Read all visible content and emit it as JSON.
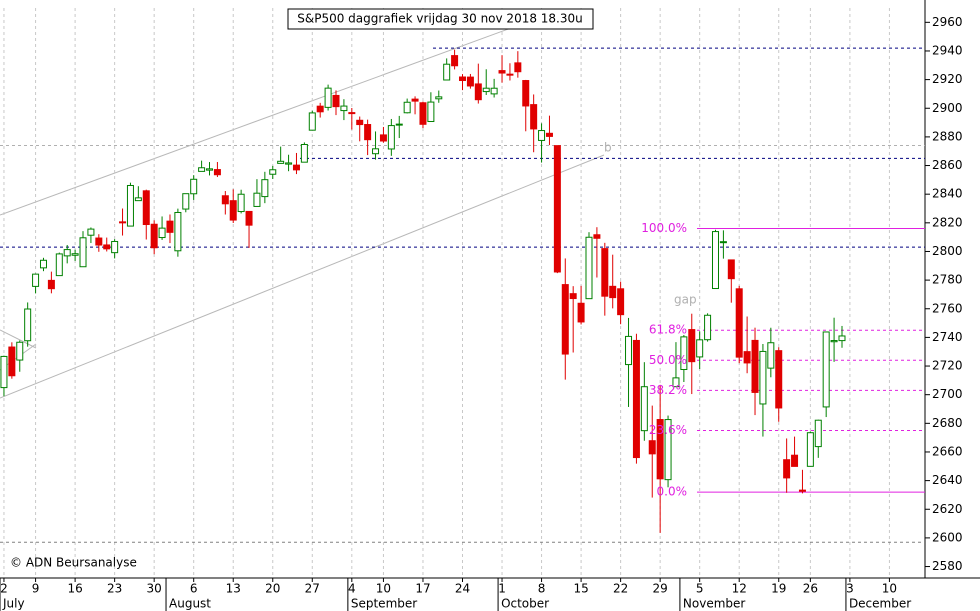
{
  "chart_data": {
    "type": "candlestick",
    "title": "S&P500 daggrafiek vrijdag 30 nov 2018 18.30u",
    "copyright": "© ADN Beursanalyse",
    "annotations": [
      "b",
      "gap"
    ],
    "categories": [
      "2",
      null,
      null,
      null,
      "9",
      null,
      null,
      null,
      null,
      "16",
      null,
      null,
      null,
      null,
      "23",
      null,
      null,
      null,
      null,
      "30",
      null,
      null,
      null,
      null,
      "6",
      null,
      null,
      null,
      null,
      "13",
      null,
      null,
      null,
      null,
      "20",
      null,
      null,
      null,
      null,
      "27",
      null,
      null,
      null,
      null,
      "4",
      null,
      null,
      null,
      "10",
      null,
      null,
      null,
      null,
      "17",
      null,
      null,
      null,
      null,
      "24",
      null,
      null,
      null,
      null,
      "1",
      null,
      null,
      null,
      null,
      "8",
      null,
      null,
      null,
      null,
      "15",
      null,
      null,
      null,
      null,
      "22",
      null,
      null,
      null,
      null,
      "29",
      null,
      null,
      null,
      null,
      "5",
      null,
      null,
      null,
      null,
      "12",
      null,
      null,
      null,
      null,
      "19",
      null,
      null,
      null,
      "26",
      null,
      null,
      null,
      null,
      "3",
      null,
      null,
      null,
      null,
      "10",
      null,
      null,
      null,
      null
    ],
    "months": [
      "July",
      null,
      null,
      null,
      null,
      null,
      null,
      null,
      null,
      null,
      null,
      null,
      null,
      null,
      null,
      null,
      null,
      null,
      null,
      null,
      null,
      "August",
      null,
      null,
      null,
      null,
      null,
      null,
      null,
      null,
      null,
      null,
      null,
      null,
      null,
      null,
      null,
      null,
      null,
      null,
      null,
      null,
      null,
      null,
      "September",
      null,
      null,
      null,
      null,
      null,
      null,
      null,
      null,
      null,
      null,
      null,
      null,
      null,
      null,
      null,
      null,
      null,
      null,
      "October",
      null,
      null,
      null,
      null,
      null,
      null,
      null,
      null,
      null,
      null,
      null,
      null,
      null,
      null,
      null,
      null,
      null,
      null,
      null,
      null,
      null,
      null,
      "November",
      null,
      null,
      null,
      null,
      null,
      null,
      null,
      null,
      null,
      null,
      null,
      null,
      null,
      null,
      null,
      null,
      null,
      null,
      null,
      null,
      "December",
      null,
      null,
      null,
      null,
      null,
      null,
      null,
      null,
      null
    ],
    "open": [
      2704.95,
      2733.27,
      2724.19,
      2737.68,
      2775.62,
      2788.56,
      2779.82,
      2783.14,
      2796.93,
      2797.36,
      2789.34,
      2811.35,
      2809.37,
      2804.55,
      2799.17,
      2820.68,
      2817.73,
      2835.49,
      2842.35,
      2819.0,
      2809.73,
      2821.17,
      2800.48,
      2829.62,
      2840.29,
      2855.92,
      2856.79,
      2857.19,
      2838.9,
      2835.46,
      2827.88,
      2827.95,
      2831.44,
      2838.32,
      2853.93,
      2861.51,
      2860.99,
      2860.29,
      2862.35,
      2884.69,
      2901.45,
      2900.62,
      2908.94,
      2898.37,
      2896.96,
      2891.59,
      2888.64,
      2868.26,
      2881.39,
      2871.57,
      2888.29,
      2896.85,
      2906.38,
      2903.83,
      2890.74,
      2906.6,
      2919.73,
      2936.76,
      2921.83,
      2921.75,
      2916.98,
      2911.65,
      2910.03,
      2926.29,
      2923.8,
      2931.69,
      2919.35,
      2902.54,
      2877.53,
      2882.51,
      2873.9,
      2776.87,
      2770.54,
      2763.83,
      2767.05,
      2811.67,
      2802.0,
      2775.66,
      2773.94,
      2721.03,
      2737.87,
      2674.88,
      2667.86,
      2682.65,
      2640.68,
      2705.6,
      2717.58,
      2745.45,
      2726.37,
      2738.4,
      2774.13,
      2806.83,
      2794.1,
      2773.93,
      2730.05,
      2737.9,
      2693.52,
      2718.54,
      2730.74,
      2654.6,
      2657.74,
      2633.36,
      2649.97,
      2663.75,
      2691.45,
      2736.97,
      2737.76,
      null,
      null,
      null,
      null,
      null,
      null,
      null,
      null,
      null,
      null
    ],
    "high": [
      2727.26,
      2736.58,
      2737.83,
      2764.41,
      2784.65,
      2795.58,
      2785.91,
      2799.22,
      2804.53,
      2801.19,
      2814.19,
      2816.76,
      2812.05,
      2809.7,
      2808.61,
      2829.99,
      2848.03,
      2845.57,
      2843.17,
      2821.74,
      2824.46,
      2825.83,
      2829.91,
      2840.38,
      2853.29,
      2863.43,
      2862.44,
      2862.48,
      2842.2,
      2843.4,
      2843.11,
      2827.95,
      2850.49,
      2855.63,
      2859.76,
      2873.23,
      2867.54,
      2868.78,
      2876.16,
      2898.25,
      2903.77,
      2916.5,
      2912.46,
      2906.32,
      2900.18,
      2894.21,
      2892.05,
      2883.81,
      2886.93,
      2892.52,
      2894.65,
      2906.76,
      2908.3,
      2904.65,
      2911.17,
      2912.36,
      2934.8,
      2940.91,
      2923.79,
      2923.95,
      2931.15,
      2927.22,
      2920.53,
      2937.06,
      2931.42,
      2939.86,
      2919.78,
      2909.64,
      2889.45,
      2894.83,
      2874.02,
      2795.14,
      2775.77,
      2775.99,
      2813.46,
      2816.94,
      2806.04,
      2797.77,
      2778.94,
      2753.59,
      2742.59,
      2722.7,
      2692.38,
      2706.85,
      2685.43,
      2736.69,
      2741.67,
      2756.55,
      2744.27,
      2756.82,
      2815.15,
      2814.75,
      2794.1,
      2775.99,
      2754.6,
      2746.8,
      2735.38,
      2746.75,
      2733.16,
      2669.44,
      2670.73,
      2647.55,
      2674.35,
      2682.53,
      2744.0,
      2753.75,
      2748.0,
      null,
      null,
      null,
      null,
      null,
      null,
      null,
      null,
      null,
      null
    ],
    "low": [
      2698.95,
      2711.16,
      2716.02,
      2733.52,
      2770.73,
      2786.24,
      2770.77,
      2783.14,
      2791.69,
      2793.39,
      2789.24,
      2805.89,
      2799.77,
      2800.01,
      2795.14,
      2811.12,
      2817.73,
      2835.26,
      2808.34,
      2798.11,
      2808.06,
      2805.85,
      2796.34,
      2827.37,
      2835.98,
      2855.92,
      2853.09,
      2851.98,
      2825.81,
      2819.88,
      2826.58,
      2802.49,
      2831.44,
      2833.73,
      2850.62,
      2861.32,
      2856.05,
      2854.03,
      2862.35,
      2884.69,
      2893.5,
      2898.4,
      2895.22,
      2891.73,
      2885.13,
      2876.92,
      2867.29,
      2864.12,
      2875.94,
      2866.78,
      2879.2,
      2896.39,
      2895.77,
      2886.16,
      2890.43,
      2903.82,
      2919.73,
      2927.11,
      2912.63,
      2913.7,
      2903.28,
      2909.27,
      2907.5,
      2917.91,
      2919.37,
      2921.36,
      2883.92,
      2869.29,
      2862.08,
      2874.27,
      2784.86,
      2710.51,
      2729.44,
      2749.03,
      2766.91,
      2781.81,
      2755.18,
      2760.27,
      2749.22,
      2691.43,
      2651.89,
      2667.84,
      2628.16,
      2603.54,
      2635.34,
      2705.6,
      2708.85,
      2700.44,
      2717.94,
      2737.08,
      2774.13,
      2794.99,
      2764.24,
      2722.0,
      2714.98,
      2685.75,
      2670.75,
      2712.16,
      2681.09,
      2631.52,
      2649.82,
      2631.09,
      2649.97,
      2655.89,
      2684.38,
      2722.94,
      2732.76,
      null,
      null,
      null,
      null,
      null,
      null,
      null,
      null,
      null,
      null
    ],
    "close": [
      2726.71,
      2713.22,
      2736.61,
      2759.82,
      2784.17,
      2793.84,
      2774.02,
      2798.29,
      2801.31,
      2798.43,
      2809.55,
      2815.62,
      2804.49,
      2801.83,
      2806.98,
      2820.4,
      2846.07,
      2837.44,
      2818.82,
      2802.6,
      2816.29,
      2813.36,
      2827.22,
      2840.35,
      2850.4,
      2858.45,
      2857.7,
      2853.58,
      2833.28,
      2821.93,
      2839.96,
      2818.37,
      2840.69,
      2850.13,
      2857.05,
      2862.96,
      2861.82,
      2856.98,
      2874.69,
      2896.74,
      2897.52,
      2914.04,
      2901.13,
      2901.52,
      2896.72,
      2888.6,
      2878.05,
      2871.68,
      2877.13,
      2887.89,
      2888.92,
      2904.18,
      2904.98,
      2888.8,
      2904.31,
      2907.95,
      2930.75,
      2929.67,
      2919.37,
      2915.56,
      2905.97,
      2914.0,
      2913.98,
      2924.59,
      2923.43,
      2925.51,
      2901.61,
      2885.57,
      2884.43,
      2880.34,
      2785.68,
      2728.37,
      2767.13,
      2750.79,
      2809.92,
      2809.21,
      2768.78,
      2767.78,
      2755.88,
      2740.69,
      2656.1,
      2705.57,
      2658.69,
      2641.25,
      2682.63,
      2711.74,
      2740.37,
      2723.06,
      2738.31,
      2755.45,
      2813.89,
      2806.83,
      2781.01,
      2726.22,
      2722.18,
      2701.58,
      2730.2,
      2736.27,
      2690.73,
      2641.89,
      2649.93,
      2632.56,
      2673.45,
      2682.17,
      2743.79,
      2737.8,
      2741.0,
      null,
      null,
      null,
      null,
      null,
      null,
      null,
      null,
      null,
      null
    ],
    "up_color": "#008000",
    "down_color": "#e00000",
    "ylim": [
      2572,
      2970
    ],
    "yticks": [
      2580,
      2600,
      2620,
      2640,
      2660,
      2680,
      2700,
      2720,
      2740,
      2760,
      2780,
      2800,
      2820,
      2840,
      2860,
      2880,
      2900,
      2920,
      2940,
      2960
    ],
    "levels": [
      {
        "value": 2942,
        "color": "#000080"
      },
      {
        "value": 2865,
        "color": "#000080"
      },
      {
        "value": 2803,
        "color": "#000080"
      },
      {
        "value": 2874,
        "color": "#b0b0b0"
      },
      {
        "value": 2597,
        "color": "#808080"
      }
    ],
    "fibonacci": {
      "color": "#e020e0",
      "levels": [
        {
          "value": 2816,
          "label": "100.0%"
        },
        {
          "value": 2745,
          "label": "61.8%"
        },
        {
          "value": 2724,
          "label": "50.0%"
        },
        {
          "value": 2703,
          "label": "38.2%"
        },
        {
          "value": 2675,
          "label": "23.6%"
        },
        {
          "value": 2632,
          "label": "0.0%"
        }
      ]
    }
  }
}
